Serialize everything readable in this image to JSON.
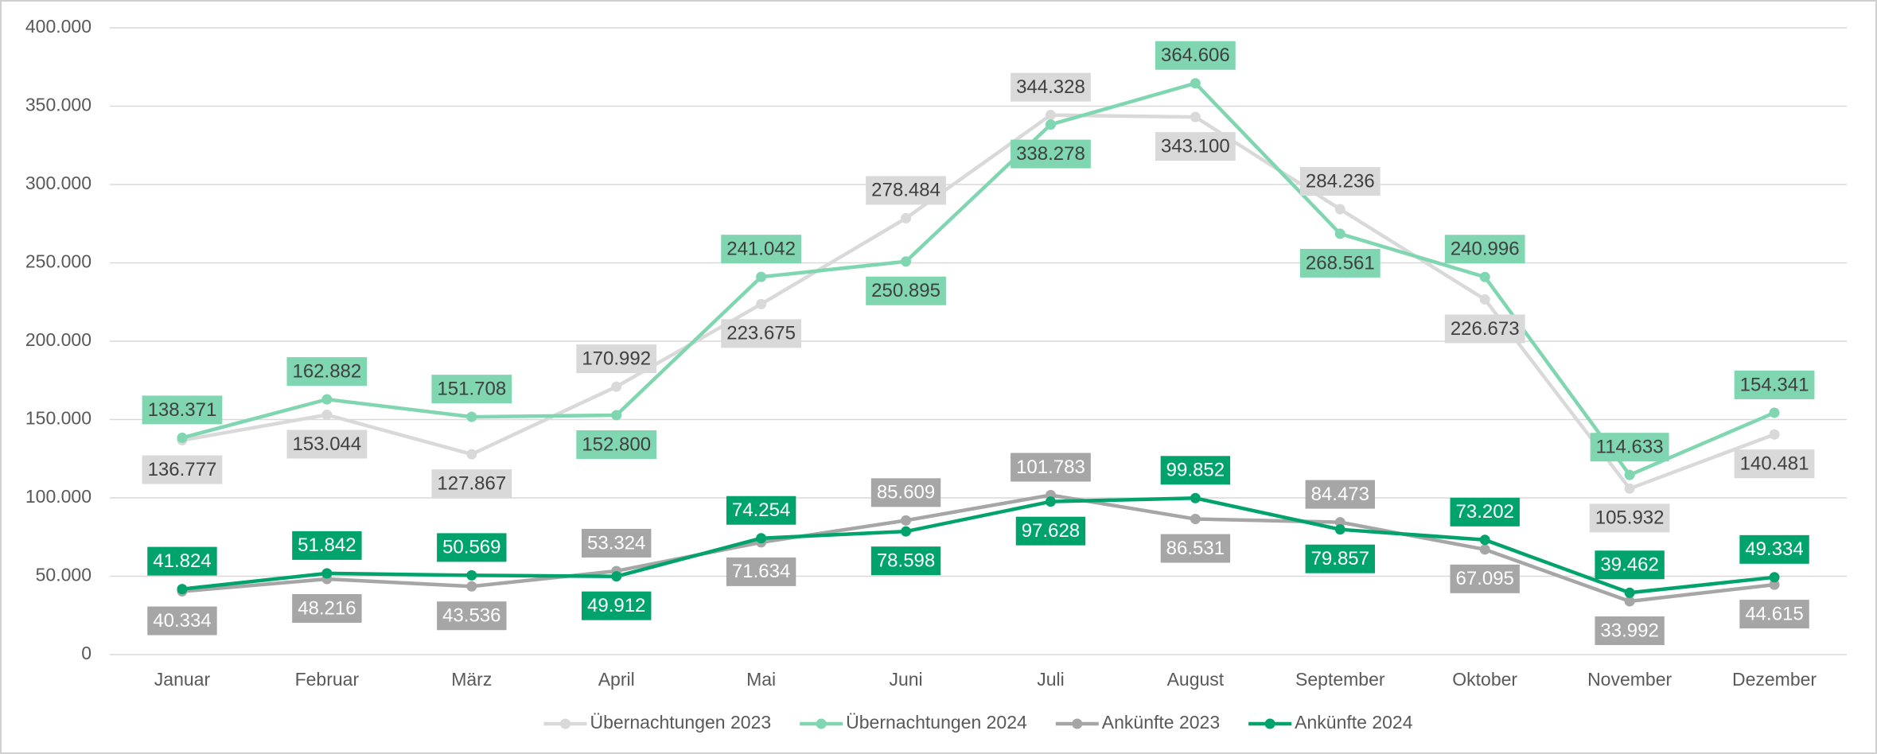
{
  "chart_data": {
    "type": "line",
    "categories": [
      "Januar",
      "Februar",
      "März",
      "April",
      "Mai",
      "Juni",
      "Juli",
      "August",
      "September",
      "Oktober",
      "November",
      "Dezember"
    ],
    "series": [
      {
        "name": "Übernachtungen 2023",
        "color": "#d9d9d9",
        "values": [
          136777,
          153044,
          127867,
          170992,
          223675,
          278484,
          344328,
          343100,
          284236,
          226673,
          105932,
          140481
        ],
        "value_labels": [
          "136.777",
          "153.044",
          "127.867",
          "170.992",
          "223.675",
          "278.484",
          "344.328",
          "343.100",
          "284.236",
          "226.673",
          "105.932",
          "140.481"
        ]
      },
      {
        "name": "Übernachtungen 2024",
        "color": "#7fd6b0",
        "values": [
          138371,
          162882,
          151708,
          152800,
          241042,
          250895,
          338278,
          364606,
          268561,
          240996,
          114633,
          154341
        ],
        "value_labels": [
          "138.371",
          "162.882",
          "151.708",
          "152.800",
          "241.042",
          "250.895",
          "338.278",
          "364.606",
          "268.561",
          "240.996",
          "114.633",
          "154.341"
        ]
      },
      {
        "name": "Ankünfte 2023",
        "color": "#a6a6a6",
        "values": [
          40334,
          48216,
          43536,
          53324,
          71634,
          85609,
          101783,
          86531,
          84473,
          67095,
          33992,
          44615
        ],
        "value_labels": [
          "40.334",
          "48.216",
          "43.536",
          "53.324",
          "71.634",
          "85.609",
          "101.783",
          "86.531",
          "84.473",
          "67.095",
          "33.992",
          "44.615"
        ]
      },
      {
        "name": "Ankünfte 2024",
        "color": "#00a36c",
        "values": [
          41824,
          51842,
          50569,
          49912,
          74254,
          78598,
          97628,
          99852,
          79857,
          73202,
          39462,
          49334
        ],
        "value_labels": [
          "41.824",
          "51.842",
          "50.569",
          "49.912",
          "74.254",
          "78.598",
          "97.628",
          "99.852",
          "79.857",
          "73.202",
          "39.462",
          "49.334"
        ]
      }
    ],
    "ylim": [
      0,
      400000
    ],
    "yticks": [
      0,
      {
        "value": 50000,
        "label": "50.000"
      },
      {
        "value": 100000,
        "label": "100.000"
      },
      {
        "value": 150000,
        "label": "150.000"
      },
      {
        "value": 200000,
        "label": "200.000"
      },
      {
        "value": 250000,
        "label": "250.000"
      },
      {
        "value": 300000,
        "label": "300.000"
      },
      {
        "value": 350000,
        "label": "350.000"
      },
      {
        "value": 400000,
        "label": "400.000"
      }
    ],
    "grid": true,
    "legend": "bottom"
  }
}
